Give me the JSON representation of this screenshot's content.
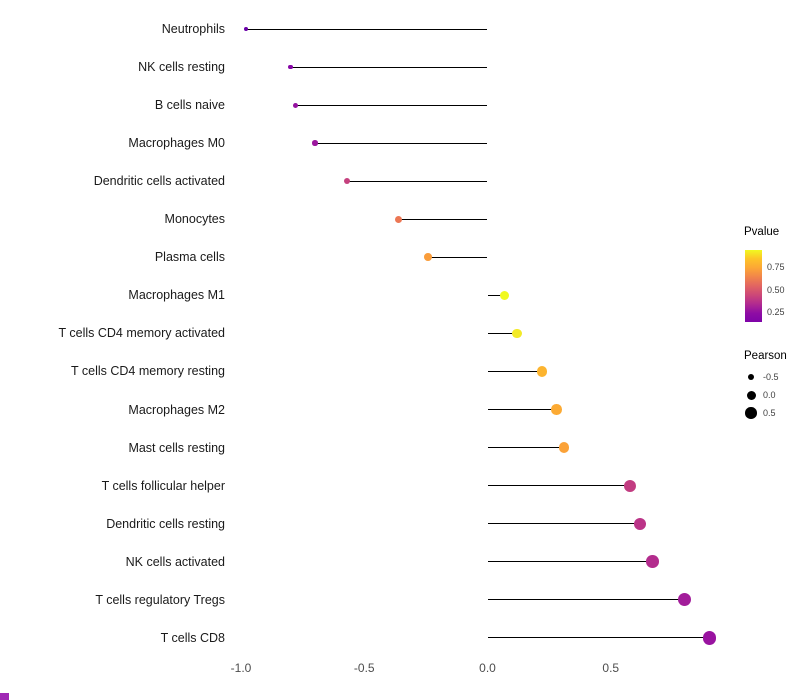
{
  "chart_data": {
    "type": "lollipop",
    "title": "",
    "xlabel": "",
    "ylabel": "",
    "xlim": [
      -1.05,
      0.95
    ],
    "grid": "off",
    "baseline": 0,
    "legend_position": "right",
    "x_ticks": [
      {
        "label": "-1.0",
        "value": -1.0
      },
      {
        "label": "-0.5",
        "value": -0.5
      },
      {
        "label": "0.0",
        "value": 0.0
      },
      {
        "label": "0.5",
        "value": 0.5
      }
    ],
    "points": [
      {
        "category": "Neutrophils",
        "pearson": -0.98,
        "color": "#6a00a8"
      },
      {
        "category": "NK cells resting",
        "pearson": -0.8,
        "color": "#8606a6"
      },
      {
        "category": "B cells naive",
        "pearson": -0.78,
        "color": "#9512a0"
      },
      {
        "category": "Macrophages M0",
        "pearson": -0.7,
        "color": "#9c179e"
      },
      {
        "category": "Dendritic cells activated",
        "pearson": -0.57,
        "color": "#c5407e"
      },
      {
        "category": "Monocytes",
        "pearson": -0.36,
        "color": "#ec7754"
      },
      {
        "category": "Plasma cells",
        "pearson": -0.24,
        "color": "#fa9d3b"
      },
      {
        "category": "Macrophages M1",
        "pearson": 0.07,
        "color": "#f0f921"
      },
      {
        "category": "T cells CD4 memory activated",
        "pearson": 0.12,
        "color": "#f3ea28"
      },
      {
        "category": "T cells CD4 memory resting",
        "pearson": 0.22,
        "color": "#fcb42f"
      },
      {
        "category": "Macrophages M2",
        "pearson": 0.28,
        "color": "#fcaa33"
      },
      {
        "category": "Mast cells resting",
        "pearson": 0.31,
        "color": "#fba238"
      },
      {
        "category": "T cells follicular helper",
        "pearson": 0.58,
        "color": "#c23c81"
      },
      {
        "category": "Dendritic cells resting",
        "pearson": 0.62,
        "color": "#bb3488"
      },
      {
        "category": "NK cells activated",
        "pearson": 0.67,
        "color": "#b32c8d"
      },
      {
        "category": "T cells regulatory Tregs",
        "pearson": 0.8,
        "color": "#a21d9a"
      },
      {
        "category": "T cells CD8",
        "pearson": 0.9,
        "color": "#9913a0"
      }
    ],
    "legend": {
      "pvalue": {
        "title": "Pvalue",
        "ticks": [
          "0.75",
          "0.50",
          "0.25"
        ],
        "gradient_top_to_bottom": [
          "#f0f921",
          "#fdc328",
          "#fca636",
          "#f1844b",
          "#e16462",
          "#cc4778",
          "#b12a90",
          "#8f0da4",
          "#7e03a8"
        ]
      },
      "pearson": {
        "title": "Pearson",
        "items": [
          {
            "label": "-0.5",
            "value": -0.5
          },
          {
            "label": "0.0",
            "value": 0.0
          },
          {
            "label": "0.5",
            "value": 0.5
          }
        ]
      }
    },
    "colors": {
      "stem": "#000000",
      "background": "#ffffff",
      "corner_artifact": "#a029b5"
    }
  }
}
